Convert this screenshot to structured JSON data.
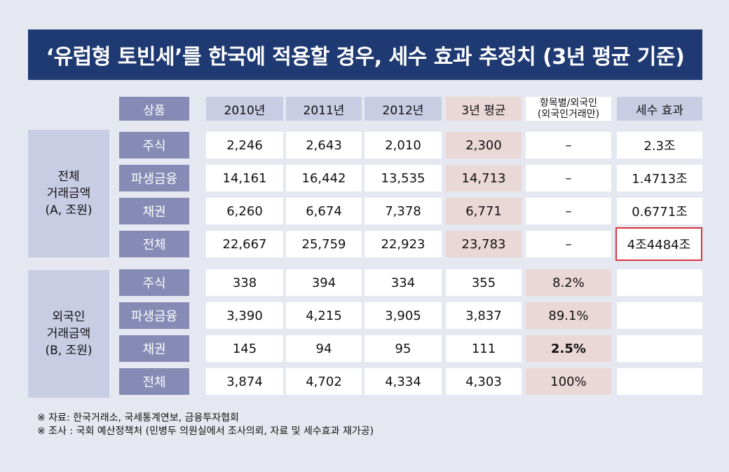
{
  "title": "‘유럽형 토빈세’를 한국에 적용할 경우, 세수 효과 추정치 (3년 평균 기준)",
  "headers": {
    "product": "상품",
    "y2010": "2010년",
    "y2011": "2011년",
    "y2012": "2012년",
    "avg": "3년 평균",
    "share_line1": "항목별/외국인",
    "share_line2": "(외국인거래만)",
    "tax": "세수 효과"
  },
  "groups": [
    {
      "label_line1": "전체",
      "label_line2": "거래금액",
      "label_line3": "(A, 조원)",
      "rows": [
        {
          "name": "주식",
          "y2010": "2,246",
          "y2011": "2,643",
          "y2012": "2,010",
          "avg": "2,300",
          "share": "–",
          "tax": "2.3조"
        },
        {
          "name": "파생금융",
          "y2010": "14,161",
          "y2011": "16,442",
          "y2012": "13,535",
          "avg": "14,713",
          "share": "–",
          "tax": "1.4713조"
        },
        {
          "name": "채권",
          "y2010": "6,260",
          "y2011": "6,674",
          "y2012": "7,378",
          "avg": "6,771",
          "share": "–",
          "tax": "0.6771조"
        },
        {
          "name": "전체",
          "y2010": "22,667",
          "y2011": "25,759",
          "y2012": "22,923",
          "avg": "23,783",
          "share": "–",
          "tax": "4조4484조"
        }
      ]
    },
    {
      "label_line1": "외국인",
      "label_line2": "거래금액",
      "label_line3": "(B, 조원)",
      "rows": [
        {
          "name": "주식",
          "y2010": "338",
          "y2011": "394",
          "y2012": "334",
          "avg": "355",
          "share": "8.2%",
          "tax": ""
        },
        {
          "name": "파생금융",
          "y2010": "3,390",
          "y2011": "4,215",
          "y2012": "3,905",
          "avg": "3,837",
          "share": "89.1%",
          "tax": ""
        },
        {
          "name": "채권",
          "y2010": "145",
          "y2011": "94",
          "y2012": "95",
          "avg": "111",
          "share": "2.5%",
          "tax": ""
        },
        {
          "name": "전체",
          "y2010": "3,874",
          "y2011": "4,702",
          "y2012": "4,334",
          "avg": "4,303",
          "share": "100%",
          "tax": ""
        }
      ]
    }
  ],
  "footnotes": {
    "source": "※ 자료: 한국거래소, 국세통계연보, 금융투자협회",
    "survey": "※ 조사 : 국회 예산정책처 (민병두 의원실에서 조사의뢰, 자료 및 세수효과 재가공)"
  }
}
